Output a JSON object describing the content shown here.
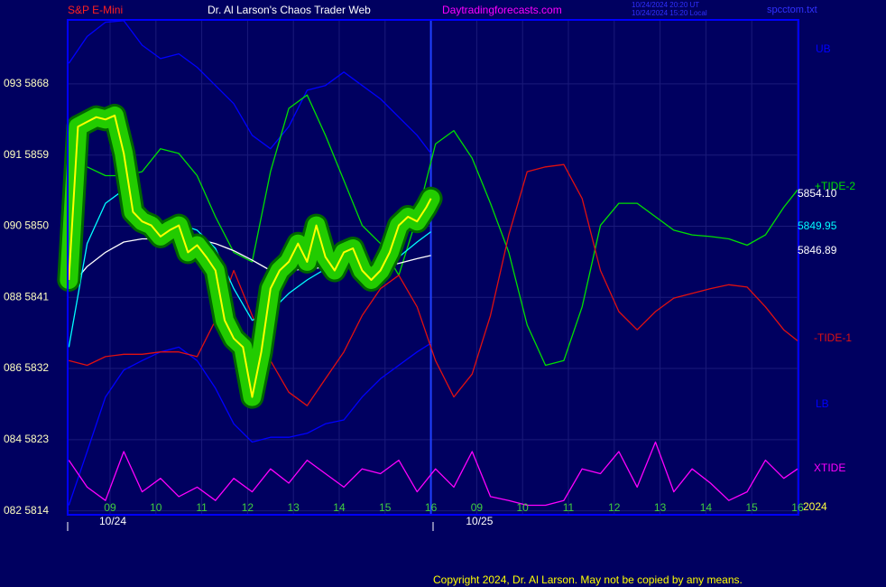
{
  "chart_data": {
    "type": "line",
    "symbol": "S&P E-Mini",
    "title": "Dr. Al Larson's Chaos Trader Web",
    "site": "Daytradingforecasts.com",
    "timestamps": [
      "10/24/2024 20:20 UT",
      "10/24/2024 15:20 Local"
    ],
    "file": "spcctom.txt",
    "copyright": "Copyright 2024, Dr. Al Larson. May not be copied by any means.",
    "year_label": "2024",
    "dates": [
      {
        "value": 9,
        "label": "10/24"
      },
      {
        "value": 17,
        "label": "10/25"
      }
    ],
    "xlim": [
      8.075,
      24.02
    ],
    "xticks": [
      {
        "value": 9,
        "label": "09"
      },
      10,
      11,
      12,
      13,
      14,
      15,
      16,
      {
        "value": 17,
        "label": "09"
      },
      {
        "value": 18,
        "label": "10"
      },
      {
        "value": 19,
        "label": "11"
      },
      {
        "value": 20,
        "label": "12"
      },
      {
        "value": 21,
        "label": "13"
      },
      {
        "value": 22,
        "label": "14"
      },
      {
        "value": 23,
        "label": "15"
      },
      {
        "value": 24,
        "label": "16"
      }
    ],
    "ylim": [
      5813.5,
      5876.1
    ],
    "yticks": [
      {
        "value": 5868,
        "label": "093 5868"
      },
      {
        "value": 5859,
        "label": "091 5859"
      },
      {
        "value": 5850,
        "label": "090 5850"
      },
      {
        "value": 5841,
        "label": "088 5841"
      },
      {
        "value": 5832,
        "label": "086 5832"
      },
      {
        "value": 5823,
        "label": "084 5823"
      },
      {
        "value": 5814,
        "label": "082 5814"
      }
    ],
    "grid": true,
    "series": [
      {
        "name": "UB",
        "color": "#0000ff",
        "x": [
          8.1,
          8.5,
          8.9,
          9.3,
          9.7,
          10.1,
          10.5,
          10.9,
          11.3,
          11.7,
          12.1,
          12.5,
          12.9,
          13.3,
          13.7,
          14.1,
          14.5,
          14.9,
          15.3,
          15.7,
          16.0
        ],
        "values": [
          5870.6,
          5874.0,
          5875.8,
          5876.0,
          5872.9,
          5871.2,
          5871.8,
          5870.1,
          5867.8,
          5865.5,
          5861.5,
          5859.8,
          5862.6,
          5867.2,
          5867.8,
          5869.5,
          5867.8,
          5866.1,
          5863.8,
          5861.5,
          5859.2
        ]
      },
      {
        "name": "LB",
        "color": "#0000ff",
        "x": [
          8.1,
          8.5,
          8.9,
          9.3,
          9.7,
          10.1,
          10.5,
          10.9,
          11.3,
          11.7,
          12.1,
          12.5,
          12.9,
          13.3,
          13.7,
          14.1,
          14.5,
          14.9,
          15.3,
          15.7,
          16.0
        ],
        "values": [
          5814.7,
          5821.5,
          5828.4,
          5831.8,
          5833.0,
          5834.1,
          5834.7,
          5833.0,
          5829.5,
          5825.0,
          5822.7,
          5823.3,
          5823.3,
          5823.8,
          5825.0,
          5825.5,
          5828.4,
          5830.7,
          5832.4,
          5834.1,
          5835.2
        ]
      },
      {
        "name": "+TIDE-2",
        "color": "#00e000",
        "x": [
          8.1,
          8.5,
          8.9,
          9.3,
          9.7,
          10.1,
          10.5,
          10.9,
          11.3,
          11.7,
          12.1,
          12.5,
          12.9,
          13.3,
          13.7,
          14.1,
          14.5,
          14.9,
          15.3,
          15.7,
          16.1,
          16.5,
          16.9,
          17.3,
          17.7,
          18.1,
          18.5,
          18.9,
          19.3,
          19.7,
          20.1,
          20.5,
          20.9,
          21.3,
          21.7,
          22.1,
          22.5,
          22.9,
          23.3,
          23.7,
          24.0
        ],
        "values": [
          5857.5,
          5857.5,
          5856.4,
          5856.4,
          5856.9,
          5859.8,
          5859.2,
          5856.4,
          5851.2,
          5846.7,
          5845.5,
          5856.9,
          5864.9,
          5866.6,
          5861.5,
          5855.8,
          5850.1,
          5847.8,
          5843.8,
          5851.2,
          5860.4,
          5862.1,
          5858.6,
          5852.9,
          5846.7,
          5837.5,
          5832.4,
          5833.0,
          5839.8,
          5850.1,
          5852.9,
          5852.9,
          5851.2,
          5849.5,
          5848.9,
          5848.7,
          5848.4,
          5847.6,
          5848.9,
          5852.4,
          5854.6
        ]
      },
      {
        "name": "-TIDE-1",
        "color": "#e01010",
        "x": [
          8.1,
          8.5,
          8.9,
          9.3,
          9.7,
          10.1,
          10.5,
          10.9,
          11.3,
          11.7,
          12.1,
          12.5,
          12.9,
          13.3,
          13.7,
          14.1,
          14.5,
          14.9,
          15.3,
          15.7,
          16.1,
          16.5,
          16.9,
          17.3,
          17.7,
          18.1,
          18.5,
          18.9,
          19.3,
          19.7,
          20.1,
          20.5,
          20.9,
          21.3,
          21.7,
          22.1,
          22.5,
          22.9,
          23.3,
          23.7,
          24.0
        ],
        "values": [
          5833.0,
          5832.4,
          5833.5,
          5833.8,
          5833.8,
          5834.1,
          5834.1,
          5833.5,
          5838.1,
          5844.4,
          5838.7,
          5833.0,
          5829.0,
          5827.3,
          5830.7,
          5834.1,
          5838.7,
          5842.1,
          5843.8,
          5839.8,
          5833.0,
          5828.4,
          5831.3,
          5838.7,
          5848.9,
          5856.9,
          5857.5,
          5857.8,
          5853.5,
          5844.4,
          5839.2,
          5836.9,
          5839.2,
          5840.9,
          5841.5,
          5842.1,
          5842.6,
          5842.3,
          5839.8,
          5836.9,
          5835.5
        ]
      },
      {
        "name": "XTIDE",
        "color": "#ff00ff",
        "x": [
          8.1,
          8.5,
          8.9,
          9.3,
          9.7,
          10.1,
          10.5,
          10.9,
          11.3,
          11.7,
          12.1,
          12.5,
          12.9,
          13.3,
          13.7,
          14.1,
          14.5,
          14.9,
          15.3,
          15.7,
          16.1,
          16.5,
          16.9,
          17.3,
          17.7,
          18.1,
          18.5,
          18.9,
          19.3,
          19.7,
          20.1,
          20.5,
          20.9,
          21.3,
          21.7,
          22.1,
          22.5,
          22.9,
          23.3,
          23.7,
          24.0
        ],
        "values": [
          5820.4,
          5817.0,
          5815.3,
          5821.5,
          5816.4,
          5818.1,
          5815.8,
          5817.0,
          5815.3,
          5818.1,
          5816.4,
          5819.3,
          5817.5,
          5820.4,
          5818.7,
          5817.0,
          5819.3,
          5818.7,
          5820.4,
          5816.4,
          5819.3,
          5817.0,
          5821.5,
          5815.8,
          5815.3,
          5814.7,
          5814.7,
          5815.3,
          5819.3,
          5818.7,
          5821.5,
          5817.0,
          5822.7,
          5816.4,
          5819.3,
          5817.5,
          5815.3,
          5816.4,
          5820.4,
          5818.1,
          5819.3
        ]
      },
      {
        "name": "5846.89",
        "color": "#ffffff",
        "x": [
          8.1,
          8.5,
          8.9,
          9.3,
          9.7,
          10.1,
          10.5,
          10.9,
          11.3,
          11.7,
          12.1,
          12.5,
          12.9,
          13.3,
          13.7,
          14.1,
          14.5,
          14.9,
          15.3,
          15.7,
          16.0
        ],
        "values": [
          5842.1,
          5844.9,
          5846.7,
          5848.0,
          5848.4,
          5848.4,
          5848.6,
          5848.4,
          5847.8,
          5846.9,
          5845.7,
          5844.4,
          5844.4,
          5844.6,
          5844.8,
          5844.9,
          5844.7,
          5844.8,
          5845.3,
          5845.9,
          5846.3
        ]
      },
      {
        "name": "5849.95",
        "color": "#00ffff",
        "x": [
          8.1,
          8.5,
          8.9,
          9.3,
          9.7,
          10.1,
          10.5,
          10.9,
          11.3,
          11.7,
          12.1,
          12.5,
          12.9,
          13.3,
          13.7,
          14.1,
          14.5,
          14.9,
          15.3,
          15.7,
          16.0
        ],
        "values": [
          5834.7,
          5847.8,
          5852.9,
          5854.6,
          5852.4,
          5850.6,
          5850.3,
          5849.5,
          5847.2,
          5842.1,
          5838.1,
          5839.2,
          5841.5,
          5843.2,
          5844.6,
          5845.2,
          5844.4,
          5844.4,
          5846.1,
          5848.0,
          5849.3
        ]
      },
      {
        "name": "5854.10",
        "color": "#ffff00",
        "label_color": "#ffffff",
        "highlight_color": "#22cc00",
        "x": [
          8.1,
          8.3,
          8.5,
          8.7,
          8.9,
          9.1,
          9.3,
          9.5,
          9.7,
          9.9,
          10.1,
          10.3,
          10.5,
          10.7,
          10.9,
          11.1,
          11.3,
          11.5,
          11.7,
          11.9,
          12.1,
          12.3,
          12.5,
          12.7,
          12.9,
          13.1,
          13.3,
          13.5,
          13.7,
          13.9,
          14.1,
          14.3,
          14.5,
          14.7,
          14.9,
          15.1,
          15.3,
          15.5,
          15.7,
          15.9,
          16.0
        ],
        "values": [
          5843.2,
          5862.6,
          5863.2,
          5863.8,
          5863.5,
          5864.0,
          5859.2,
          5851.8,
          5850.6,
          5850.1,
          5848.7,
          5849.5,
          5850.1,
          5846.7,
          5847.6,
          5846.1,
          5844.4,
          5838.1,
          5835.8,
          5834.7,
          5828.4,
          5834.1,
          5842.1,
          5844.4,
          5845.5,
          5847.8,
          5845.5,
          5850.1,
          5846.1,
          5844.4,
          5846.7,
          5847.2,
          5844.4,
          5843.2,
          5844.4,
          5846.7,
          5850.1,
          5851.2,
          5850.6,
          5852.4,
          5853.5
        ]
      }
    ]
  }
}
